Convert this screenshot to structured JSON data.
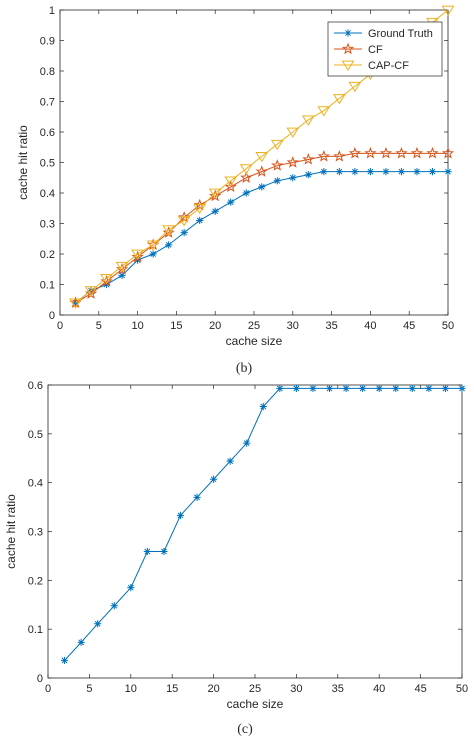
{
  "chart_data": [
    {
      "type": "line",
      "panel_label": "(b)",
      "xlabel": "cache size",
      "ylabel": "cache hit ratio",
      "xlim": [
        0,
        50
      ],
      "ylim": [
        0,
        1
      ],
      "xticks": [
        0,
        5,
        10,
        15,
        20,
        25,
        30,
        35,
        40,
        45,
        50
      ],
      "yticks": [
        0,
        0.1,
        0.2,
        0.3,
        0.4,
        0.5,
        0.6,
        0.7,
        0.8,
        0.9,
        1
      ],
      "ytick_labels": [
        "0",
        "0.1",
        "0.2",
        "0.3",
        "0.4",
        "0.5",
        "0.6",
        "0.7",
        "0.8",
        "0.9",
        "1"
      ],
      "grid": false,
      "legend_position": "top-right",
      "x": [
        2,
        4,
        6,
        8,
        10,
        12,
        14,
        16,
        18,
        20,
        22,
        24,
        26,
        28,
        30,
        32,
        34,
        36,
        38,
        40,
        42,
        44,
        46,
        48,
        50
      ],
      "series": [
        {
          "name": "Ground Truth",
          "color": "#0072BD",
          "marker": "asterisk",
          "values": [
            0.04,
            0.08,
            0.1,
            0.13,
            0.18,
            0.2,
            0.23,
            0.27,
            0.31,
            0.34,
            0.37,
            0.4,
            0.42,
            0.44,
            0.45,
            0.46,
            0.47,
            0.47,
            0.47,
            0.47,
            0.47,
            0.47,
            0.47,
            0.47,
            0.47
          ]
        },
        {
          "name": "CF",
          "color": "#D95319",
          "marker": "star",
          "values": [
            0.04,
            0.07,
            0.11,
            0.15,
            0.19,
            0.23,
            0.27,
            0.32,
            0.36,
            0.39,
            0.42,
            0.45,
            0.47,
            0.49,
            0.5,
            0.51,
            0.52,
            0.52,
            0.53,
            0.53,
            0.53,
            0.53,
            0.53,
            0.53,
            0.53
          ]
        },
        {
          "name": "CAP-CF",
          "color": "#EDB120",
          "marker": "triangle-down",
          "values": [
            0.04,
            0.08,
            0.12,
            0.16,
            0.2,
            0.23,
            0.28,
            0.31,
            0.35,
            0.4,
            0.44,
            0.48,
            0.52,
            0.56,
            0.6,
            0.64,
            0.67,
            0.71,
            0.75,
            0.79,
            0.83,
            0.87,
            0.91,
            0.96,
            1.0
          ]
        }
      ]
    },
    {
      "type": "line",
      "panel_label": "(c)",
      "xlabel": "cache size",
      "ylabel": "cache hit ratio",
      "xlim": [
        0,
        50
      ],
      "ylim": [
        0,
        0.6
      ],
      "xticks": [
        0,
        5,
        10,
        15,
        20,
        25,
        30,
        35,
        40,
        45,
        50
      ],
      "yticks": [
        0,
        0.1,
        0.2,
        0.3,
        0.4,
        0.5,
        0.6
      ],
      "ytick_labels": [
        "0",
        "0.1",
        "0.2",
        "0.3",
        "0.4",
        "0.5",
        "0.6"
      ],
      "grid": false,
      "x": [
        2,
        4,
        6,
        8,
        10,
        12,
        14,
        16,
        18,
        20,
        22,
        24,
        26,
        28,
        30,
        32,
        34,
        36,
        38,
        40,
        42,
        44,
        46,
        48,
        50
      ],
      "series": [
        {
          "color": "#0072BD",
          "marker": "asterisk",
          "values": [
            0.036,
            0.073,
            0.111,
            0.148,
            0.185,
            0.259,
            0.259,
            0.333,
            0.37,
            0.407,
            0.444,
            0.481,
            0.556,
            0.593,
            0.593,
            0.593,
            0.593,
            0.593,
            0.593,
            0.593,
            0.593,
            0.593,
            0.593,
            0.593,
            0.593
          ]
        }
      ]
    }
  ]
}
